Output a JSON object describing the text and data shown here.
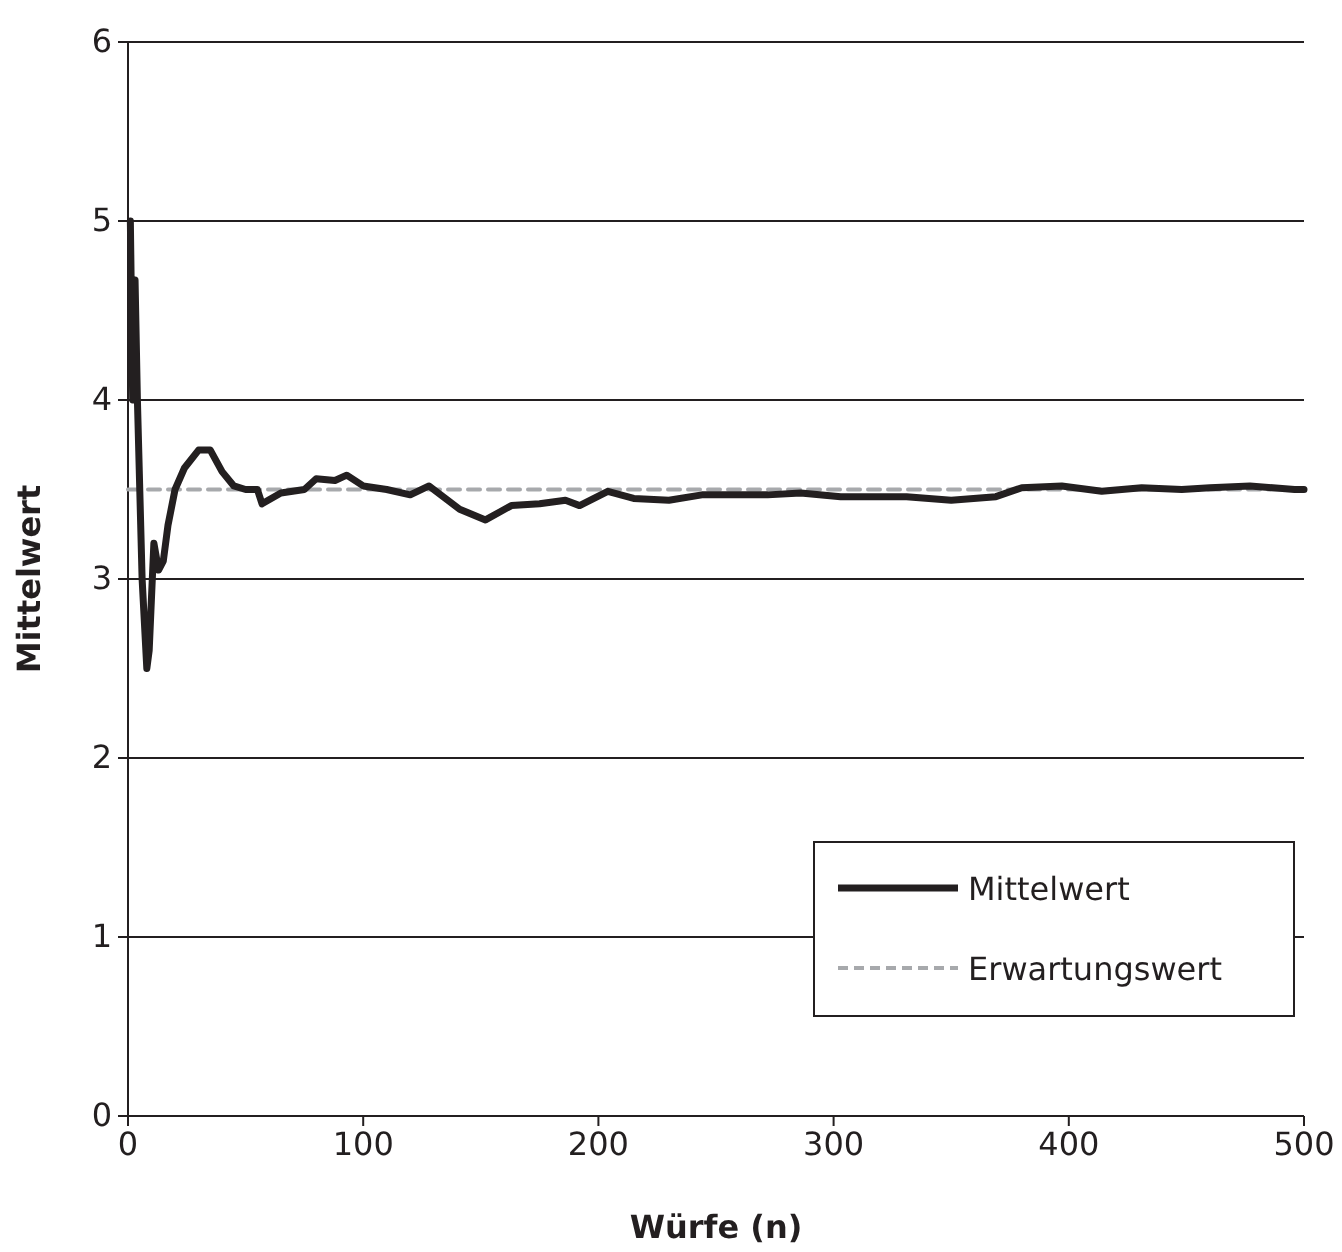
{
  "chart_data": {
    "type": "line",
    "xlabel": "Würfe (n)",
    "ylabel": "Mittelwert",
    "xlim": [
      0,
      500
    ],
    "ylim": [
      0,
      6
    ],
    "xticks": [
      0,
      100,
      200,
      300,
      400,
      500
    ],
    "yticks": [
      0,
      1,
      2,
      3,
      4,
      5,
      6
    ],
    "grid": "y",
    "legend": "bottom right",
    "series": [
      {
        "name": "Mittelwert",
        "color": "#231f20",
        "line_style": "solid",
        "x": [
          1,
          2,
          3,
          4,
          6,
          8,
          9,
          11,
          13,
          15,
          17,
          20,
          24,
          30,
          35,
          40,
          45,
          50,
          55,
          57,
          65,
          75,
          80,
          88,
          93,
          100,
          110,
          120,
          128,
          141,
          152,
          163,
          175,
          186,
          192,
          204,
          215,
          230,
          244,
          272,
          286,
          303,
          331,
          350,
          369,
          380,
          397,
          414,
          431,
          448,
          460,
          477,
          496,
          500
        ],
        "values": [
          5.0,
          4.0,
          4.67,
          4.0,
          3.0,
          2.5,
          2.6,
          3.2,
          3.05,
          3.1,
          3.3,
          3.5,
          3.62,
          3.72,
          3.72,
          3.6,
          3.52,
          3.5,
          3.5,
          3.42,
          3.48,
          3.5,
          3.56,
          3.55,
          3.58,
          3.52,
          3.5,
          3.47,
          3.52,
          3.39,
          3.33,
          3.41,
          3.42,
          3.44,
          3.41,
          3.49,
          3.45,
          3.44,
          3.47,
          3.47,
          3.48,
          3.46,
          3.46,
          3.44,
          3.46,
          3.51,
          3.52,
          3.49,
          3.51,
          3.5,
          3.51,
          3.52,
          3.5,
          3.5
        ]
      },
      {
        "name": "Erwartungswert",
        "color": "#a7a9ac",
        "line_style": "dashed",
        "x": [
          0,
          500
        ],
        "values": [
          3.5,
          3.5
        ]
      }
    ]
  }
}
